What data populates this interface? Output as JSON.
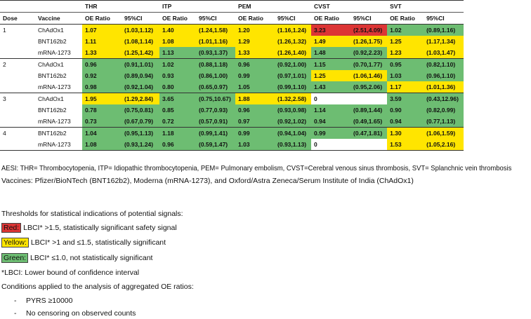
{
  "colors": {
    "red": "#dc3535",
    "yellow": "#ffe500",
    "green": "#6dbd72"
  },
  "table": {
    "outcomes": [
      "THR",
      "ITP",
      "PEM",
      "CVST",
      "SVT"
    ],
    "col_headers": {
      "dose": "Dose",
      "vaccine": "Vaccine",
      "oe": "OE Ratio",
      "ci": "95%CI"
    },
    "rows": [
      {
        "dose": "1",
        "vaccine": "ChAdOx1",
        "cells": [
          [
            "1.07",
            "(1.03,1.12)",
            "yellow"
          ],
          [
            "1.40",
            "(1.24,1.58)",
            "yellow"
          ],
          [
            "1.20",
            "(1.16,1.24)",
            "yellow"
          ],
          [
            "3.23",
            "(2.51,4.09)",
            "red"
          ],
          [
            "1.02",
            "(0.89,1.16)",
            "green"
          ]
        ]
      },
      {
        "dose": "",
        "vaccine": "BNT162b2",
        "cells": [
          [
            "1.11",
            "(1.08,1.14)",
            "yellow"
          ],
          [
            "1.08",
            "(1.01,1.16)",
            "yellow"
          ],
          [
            "1.29",
            "(1.26,1.32)",
            "yellow"
          ],
          [
            "1.49",
            "(1.26,1.75)",
            "yellow"
          ],
          [
            "1.25",
            "(1.17,1.34)",
            "yellow"
          ]
        ]
      },
      {
        "dose": "",
        "vaccine": "mRNA-1273",
        "cells": [
          [
            "1.33",
            "(1.25,1.42)",
            "yellow"
          ],
          [
            "1.13",
            "(0.93,1.37)",
            "green"
          ],
          [
            "1.33",
            "(1.26,1.40)",
            "yellow"
          ],
          [
            "1.48",
            "(0.92,2.23)",
            "green"
          ],
          [
            "1.23",
            "(1.03,1.47)",
            "yellow"
          ]
        ]
      },
      {
        "dose": "2",
        "vaccine": "ChAdOx1",
        "cells": [
          [
            "0.96",
            "(0.91,1.01)",
            "green"
          ],
          [
            "1.02",
            "(0.88,1.18)",
            "green"
          ],
          [
            "0.96",
            "(0.92,1.00)",
            "green"
          ],
          [
            "1.15",
            "(0.70,1.77)",
            "green"
          ],
          [
            "0.95",
            "(0.82,1.10)",
            "green"
          ]
        ]
      },
      {
        "dose": "",
        "vaccine": "BNT162b2",
        "cells": [
          [
            "0.92",
            "(0.89,0.94)",
            "green"
          ],
          [
            "0.93",
            "(0.86,1.00)",
            "green"
          ],
          [
            "0.99",
            "(0.97,1.01)",
            "green"
          ],
          [
            "1.25",
            "(1.06,1.46)",
            "yellow"
          ],
          [
            "1.03",
            "(0.96,1.10)",
            "green"
          ]
        ]
      },
      {
        "dose": "",
        "vaccine": "mRNA-1273",
        "cells": [
          [
            "0.98",
            "(0.92,1.04)",
            "green"
          ],
          [
            "0.80",
            "(0.65,0.97)",
            "green"
          ],
          [
            "1.05",
            "(0.99,1.10)",
            "green"
          ],
          [
            "1.43",
            "(0.95,2.06)",
            "green"
          ],
          [
            "1.17",
            "(1.01,1.36)",
            "yellow"
          ]
        ]
      },
      {
        "dose": "3",
        "vaccine": "ChAdOx1",
        "cells": [
          [
            "1.95",
            "(1.29,2.84)",
            "yellow"
          ],
          [
            "3.65",
            "(0.75,10.67)",
            "green"
          ],
          [
            "1.88",
            "(1.32,2.58)",
            "yellow"
          ],
          [
            "0",
            "",
            "none"
          ],
          [
            "3.59",
            "(0.43,12.96)",
            "green"
          ]
        ]
      },
      {
        "dose": "",
        "vaccine": "BNT162b2",
        "cells": [
          [
            "0.78",
            "(0.75,0.81)",
            "green"
          ],
          [
            "0.85",
            "(0.77,0.93)",
            "green"
          ],
          [
            "0.96",
            "(0.93,0.98)",
            "green"
          ],
          [
            "1.14",
            "(0.89,1.44)",
            "green"
          ],
          [
            "0.90",
            "(0.82,0.99)",
            "green"
          ]
        ]
      },
      {
        "dose": "",
        "vaccine": "mRNA-1273",
        "cells": [
          [
            "0.73",
            "(0.67,0.79)",
            "green"
          ],
          [
            "0.72",
            "(0.57,0.91)",
            "green"
          ],
          [
            "0.97",
            "(0.92,1.02)",
            "green"
          ],
          [
            "0.94",
            "(0.49,1.65)",
            "green"
          ],
          [
            "0.94",
            "(0.77,1.13)",
            "green"
          ]
        ]
      },
      {
        "dose": "4",
        "vaccine": "BNT162b2",
        "cells": [
          [
            "1.04",
            "(0.95,1.13)",
            "green"
          ],
          [
            "1.18",
            "(0.99,1.41)",
            "green"
          ],
          [
            "0.99",
            "(0.94,1.04)",
            "green"
          ],
          [
            "0.99",
            "(0.47,1.81)",
            "green"
          ],
          [
            "1.30",
            "(1.06,1.59)",
            "yellow"
          ]
        ]
      },
      {
        "dose": "",
        "vaccine": "mRNA-1273",
        "cells": [
          [
            "1.08",
            "(0.93,1.24)",
            "green"
          ],
          [
            "0.96",
            "(0.59,1.47)",
            "green"
          ],
          [
            "1.03",
            "(0.93,1.13)",
            "green"
          ],
          [
            "0",
            "",
            "none"
          ],
          [
            "1.53",
            "(1.05,2.16)",
            "yellow"
          ]
        ]
      }
    ]
  },
  "notes": {
    "aesi": "AESI: THR= Thrombocytopenia, ITP= Idiopathic thrombocytopenia, PEM= Pulmonary embolism, CVST=Cerebral venous sinus thrombosis, SVT= Splanchnic vein thrombosis",
    "vaccines": "Vaccines: Pfizer/BioNTech (BNT162b2), Moderna (mRNA-1273), and Oxford/Astra Zeneca/Serum Institute of India (ChAdOx1)",
    "thresholds_title": "Thresholds for statistical indications of potential signals:",
    "red_label": "Red:",
    "red_text": "LBCI* >1.5, statistically significant safety signal",
    "yellow_label": "Yellow:",
    "yellow_text": "LBCI* >1 and ≤1.5, statistically significant",
    "green_label": "Green:",
    "green_text": "LBCI* ≤1.0, not statistically significant",
    "lbci": "*LBCI: Lower bound of confidence interval",
    "conditions": "Conditions applied to the analysis of aggregated OE ratios:",
    "bullets": [
      "PYRS ≥10000",
      "No censoring on observed counts"
    ],
    "bullet_marker": "-"
  }
}
